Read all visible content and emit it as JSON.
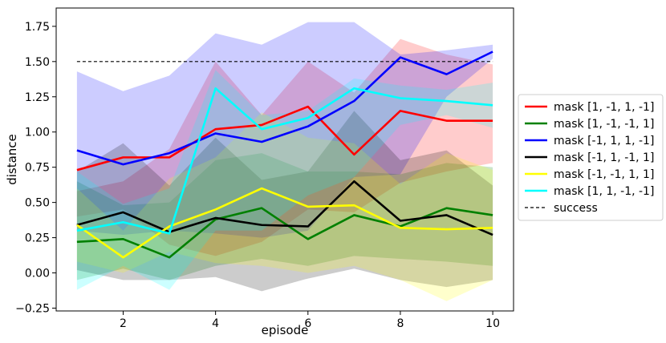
{
  "chart_data": {
    "type": "line",
    "title": "",
    "xlabel": "episode",
    "ylabel": "distance",
    "xlim": [
      0.55,
      10.45
    ],
    "ylim": [
      -0.27,
      1.88
    ],
    "xticks": [
      2,
      4,
      6,
      8,
      10
    ],
    "yticks": [
      -0.25,
      0.0,
      0.25,
      0.5,
      0.75,
      1.0,
      1.25,
      1.5,
      1.75
    ],
    "ytick_labels": [
      "−0.25",
      "0.00",
      "0.25",
      "0.50",
      "0.75",
      "1.00",
      "1.25",
      "1.50",
      "1.75"
    ],
    "grid": false,
    "legend_position": "right",
    "x": [
      1,
      2,
      3,
      4,
      5,
      6,
      7,
      8,
      9,
      10
    ],
    "series": [
      {
        "name": "mask [1, -1, 1, -1]",
        "color": "#ff0000",
        "values": [
          0.73,
          0.82,
          0.82,
          1.02,
          1.05,
          1.18,
          0.84,
          1.15,
          1.08,
          1.08
        ],
        "upper": [
          0.58,
          0.65,
          0.88,
          1.5,
          1.12,
          1.5,
          1.28,
          1.66,
          1.55,
          1.48
        ],
        "lower": [
          0.4,
          0.45,
          0.2,
          0.12,
          0.22,
          0.45,
          0.43,
          0.64,
          0.72,
          0.78
        ]
      },
      {
        "name": "mask [1, -1, -1, 1]",
        "color": "#008000",
        "values": [
          0.22,
          0.24,
          0.11,
          0.38,
          0.46,
          0.24,
          0.41,
          0.33,
          0.46,
          0.41
        ],
        "upper": [
          0.65,
          0.48,
          0.5,
          0.8,
          0.85,
          0.72,
          0.72,
          0.7,
          0.78,
          0.75
        ],
        "lower": [
          -0.05,
          0.03,
          -0.05,
          0.05,
          0.1,
          0.05,
          0.12,
          0.1,
          0.08,
          0.05
        ]
      },
      {
        "name": "mask [-1, 1, 1, -1]",
        "color": "#0000ff",
        "values": [
          0.87,
          0.77,
          0.85,
          0.99,
          0.93,
          1.04,
          1.22,
          1.53,
          1.41,
          1.57
        ],
        "upper": [
          1.43,
          1.29,
          1.4,
          1.7,
          1.62,
          1.78,
          1.78,
          1.55,
          1.58,
          1.62
        ],
        "lower": [
          0.3,
          0.27,
          0.3,
          0.28,
          0.25,
          0.3,
          0.68,
          0.7,
          1.25,
          1.52
        ]
      },
      {
        "name": "mask [-1, 1, -1, 1]",
        "color": "#000000",
        "values": [
          0.34,
          0.43,
          0.29,
          0.39,
          0.34,
          0.33,
          0.65,
          0.37,
          0.41,
          0.27
        ],
        "upper": [
          0.72,
          0.92,
          0.62,
          0.96,
          0.66,
          0.72,
          1.15,
          0.8,
          0.87,
          0.62
        ],
        "lower": [
          0.02,
          -0.05,
          -0.05,
          -0.03,
          -0.13,
          -0.04,
          0.03,
          -0.05,
          -0.1,
          -0.05
        ]
      },
      {
        "name": "mask [-1, -1, 1, 1]",
        "color": "#ffff00",
        "values": [
          0.34,
          0.11,
          0.33,
          0.45,
          0.6,
          0.47,
          0.48,
          0.32,
          0.31,
          0.32
        ],
        "upper": [
          0.6,
          0.3,
          0.67,
          0.82,
          1.14,
          0.96,
          0.92,
          0.63,
          0.85,
          0.73
        ],
        "lower": [
          0.08,
          0.0,
          0.15,
          0.07,
          0.05,
          0.0,
          0.05,
          -0.05,
          -0.2,
          -0.05
        ]
      },
      {
        "name": "mask [1, 1, -1, -1]",
        "color": "#00ffff",
        "values": [
          0.3,
          0.36,
          0.28,
          1.31,
          1.02,
          1.1,
          1.31,
          1.24,
          1.22,
          1.19
        ],
        "upper": [
          0.72,
          0.49,
          0.6,
          1.44,
          1.12,
          1.15,
          1.38,
          1.33,
          1.3,
          1.35
        ],
        "lower": [
          -0.12,
          0.05,
          -0.12,
          0.3,
          0.3,
          0.55,
          0.68,
          1.05,
          1.12,
          1.03
        ]
      }
    ],
    "reference_line": {
      "name": "success",
      "y": 1.5,
      "x_from": 1,
      "x_to": 10,
      "style": "dashed",
      "color": "#000000"
    }
  }
}
